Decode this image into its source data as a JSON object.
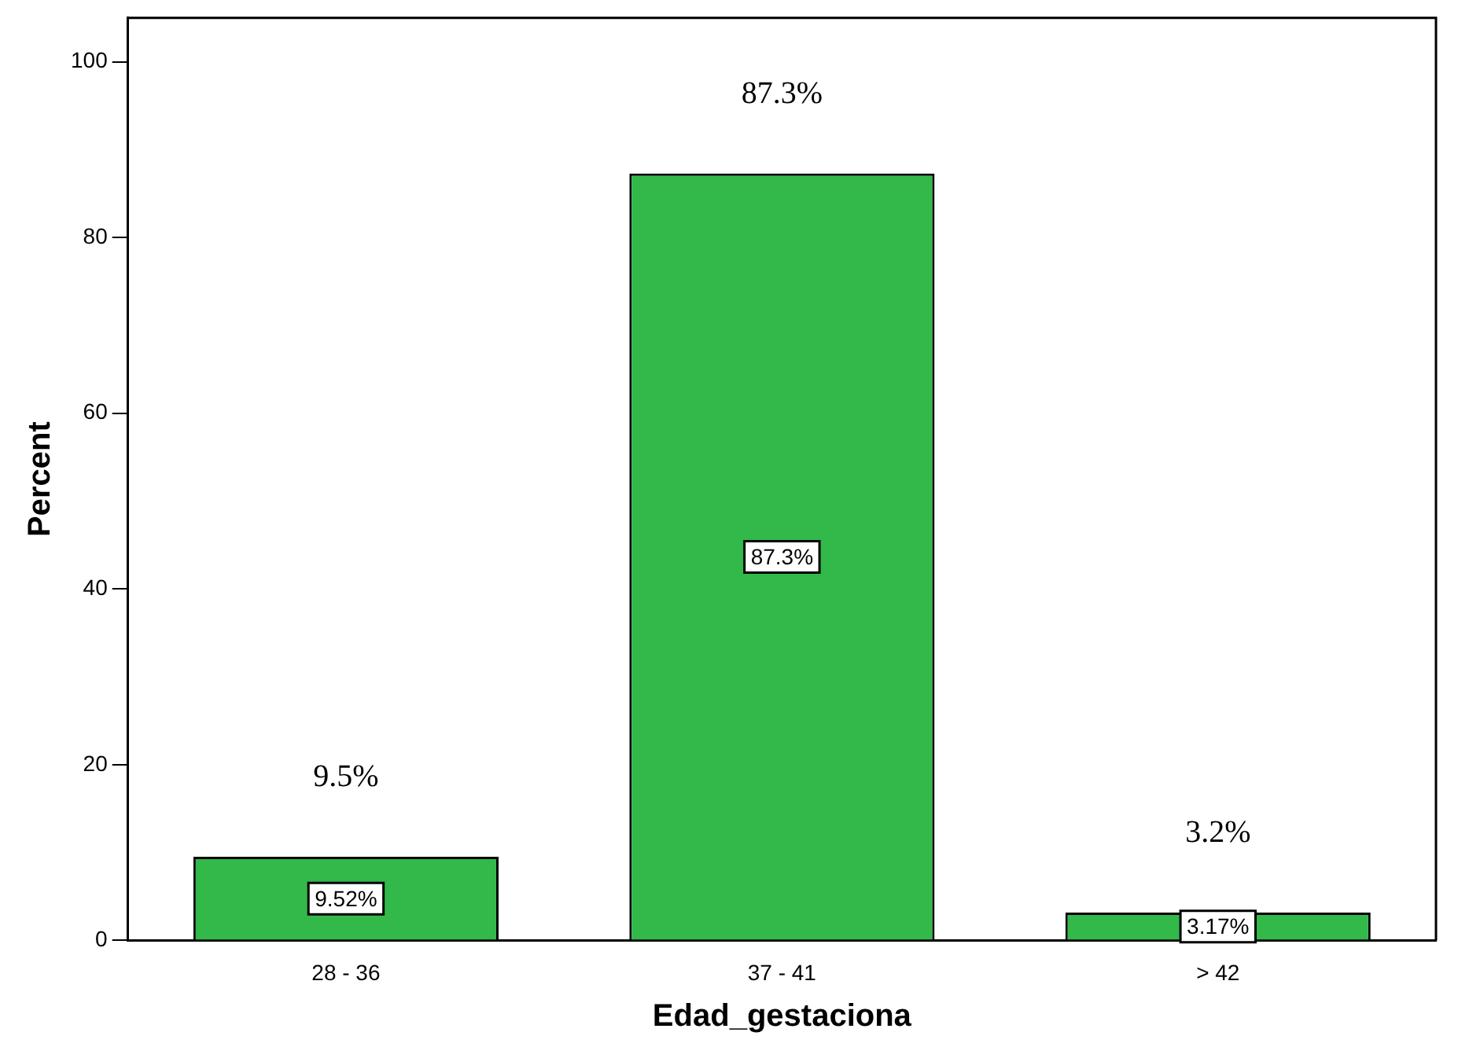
{
  "chart_data": {
    "type": "bar",
    "xlabel": "Edad_gestaciona",
    "ylabel": "Percent",
    "categories": [
      "28 - 36",
      "37 - 41",
      "> 42"
    ],
    "values": [
      9.52,
      87.3,
      3.17
    ],
    "color": "#33b84a",
    "value_labels": [
      "9.52%",
      "87.3%",
      "3.17%"
    ],
    "annotations": [
      {
        "text": "9.5%",
        "x": "28 - 36",
        "y": 9.52
      },
      {
        "text": "87.3%",
        "x": "37 - 41",
        "y": 87.3
      },
      {
        "text": "3.2%",
        "x": "> 42",
        "y": 3.17
      }
    ],
    "ylim": [
      0,
      105
    ],
    "yticks": [
      0,
      20,
      40,
      60,
      80,
      100
    ],
    "grid": false,
    "legend": false
  }
}
